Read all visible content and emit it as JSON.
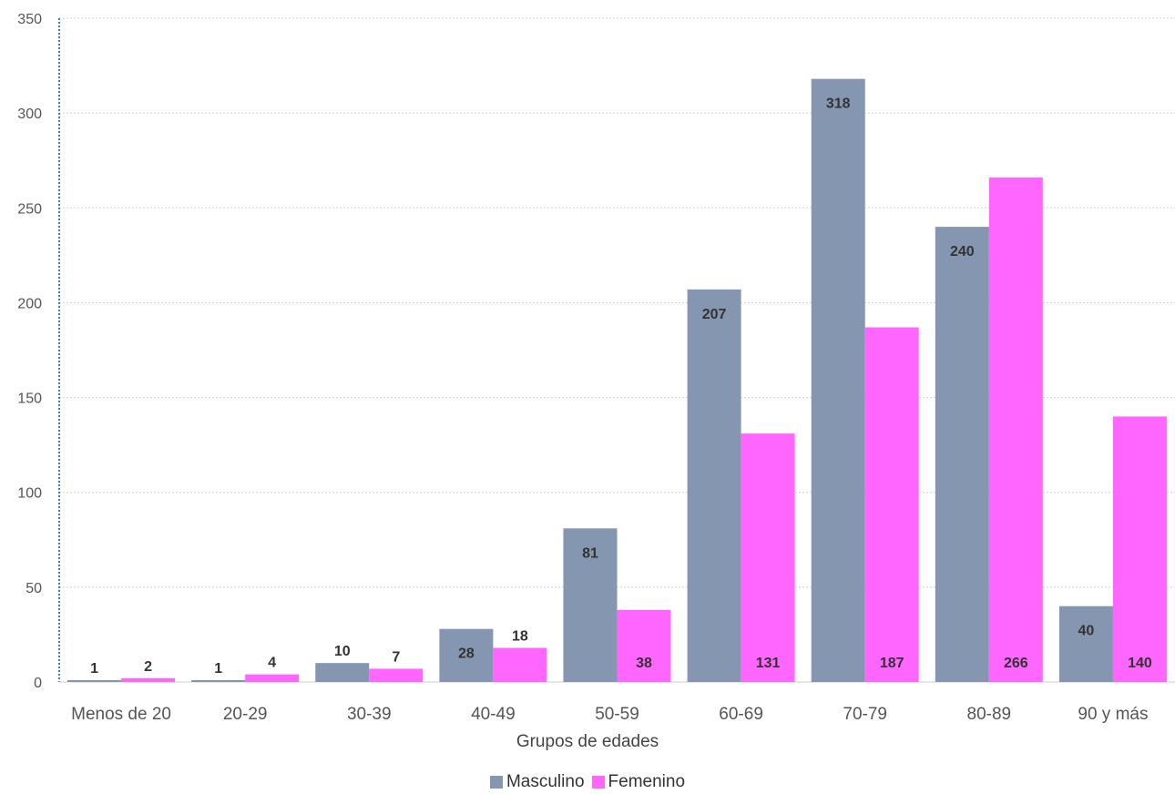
{
  "chart_data": {
    "type": "bar",
    "categories": [
      "Menos de 20",
      "20-29",
      "30-39",
      "40-49",
      "50-59",
      "60-69",
      "70-79",
      "80-89",
      "90 y más"
    ],
    "series": [
      {
        "name": "Masculino",
        "color": "#8496B0",
        "values": [
          1,
          1,
          10,
          28,
          81,
          207,
          318,
          240,
          40
        ]
      },
      {
        "name": "Femenino",
        "color": "#FF66FF",
        "values": [
          2,
          4,
          7,
          18,
          38,
          131,
          187,
          266,
          140
        ]
      }
    ],
    "title": "",
    "xlabel": "Grupos de edades",
    "ylabel": "",
    "ylim": [
      0,
      350
    ],
    "yticks": [
      0,
      50,
      100,
      150,
      200,
      250,
      300,
      350
    ],
    "grid": true,
    "legend_position": "bottom"
  }
}
